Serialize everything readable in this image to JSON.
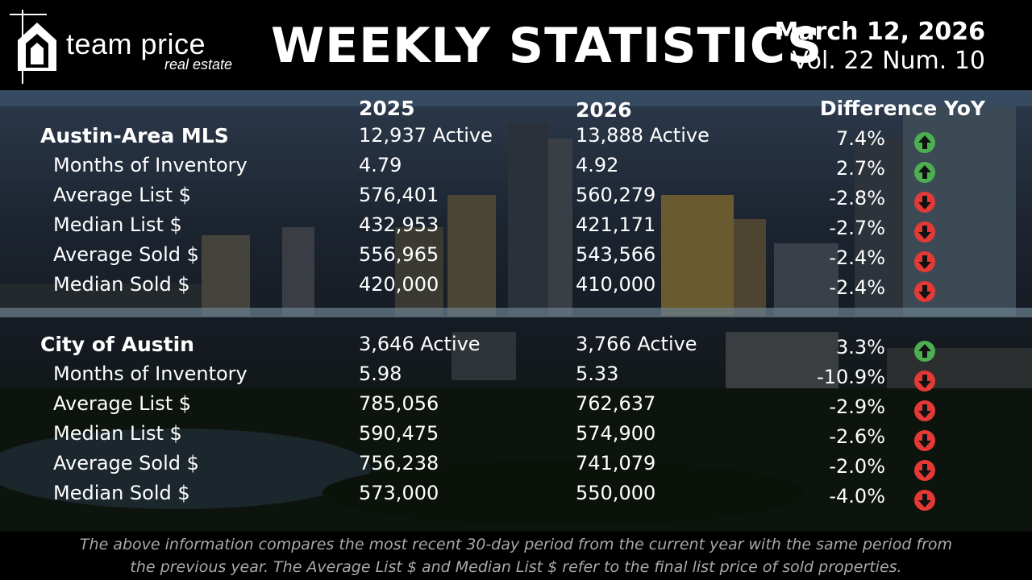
{
  "brand": {
    "name": "team price",
    "sub": "real estate",
    "logo_icon": "house-icon"
  },
  "title": "WEEKLY STATISTICS",
  "issue": {
    "date": "March 12, 2026",
    "volume": "Vol. 22 Num. 10"
  },
  "columns": {
    "y2025": "2025",
    "y2026": "2026",
    "diff": "Difference YoY"
  },
  "sections": [
    {
      "name": "Austin-Area MLS",
      "active_2025": "12,937  Active",
      "active_2026": "13,888  Active",
      "active_diff": "7.4%",
      "active_dir": "up",
      "rows": [
        {
          "label": "Months of Inventory",
          "v2025": "4.79",
          "v2026": "4.92",
          "diff": "2.7%",
          "dir": "up"
        },
        {
          "label": "Average List $",
          "v2025": "576,401",
          "v2026": "560,279",
          "diff": "-2.8%",
          "dir": "down"
        },
        {
          "label": "Median List $",
          "v2025": "432,953",
          "v2026": "421,171",
          "diff": "-2.7%",
          "dir": "down"
        },
        {
          "label": "Average Sold $",
          "v2025": "556,965",
          "v2026": "543,566",
          "diff": "-2.4%",
          "dir": "down"
        },
        {
          "label": "Median Sold $",
          "v2025": "420,000",
          "v2026": "410,000",
          "diff": "-2.4%",
          "dir": "down"
        }
      ]
    },
    {
      "name": "City of Austin",
      "active_2025": "3,646  Active",
      "active_2026": "3,766 Active",
      "active_diff": "3.3%",
      "active_dir": "up",
      "rows": [
        {
          "label": "Months of Inventory",
          "v2025": "5.98",
          "v2026": "5.33",
          "diff": "-10.9%",
          "dir": "down"
        },
        {
          "label": "Average List $",
          "v2025": "785,056",
          "v2026": "762,637",
          "diff": "-2.9%",
          "dir": "down"
        },
        {
          "label": "Median List $",
          "v2025": "590,475",
          "v2026": "574,900",
          "diff": "-2.6%",
          "dir": "down"
        },
        {
          "label": "Average Sold $",
          "v2025": "756,238",
          "v2026": "741,079",
          "diff": "-2.0%",
          "dir": "down"
        },
        {
          "label": "Median Sold $",
          "v2025": "573,000",
          "v2026": "550,000",
          "diff": "-4.0%",
          "dir": "down"
        }
      ]
    }
  ],
  "colors": {
    "up": "#4caf50",
    "down": "#e53935"
  },
  "footer": {
    "line1": "The above information compares the most recent 30-day period from the current year with the same period from",
    "line2": "the previous year. The Average List $ and Median List $ refer to the final list price of sold properties."
  }
}
